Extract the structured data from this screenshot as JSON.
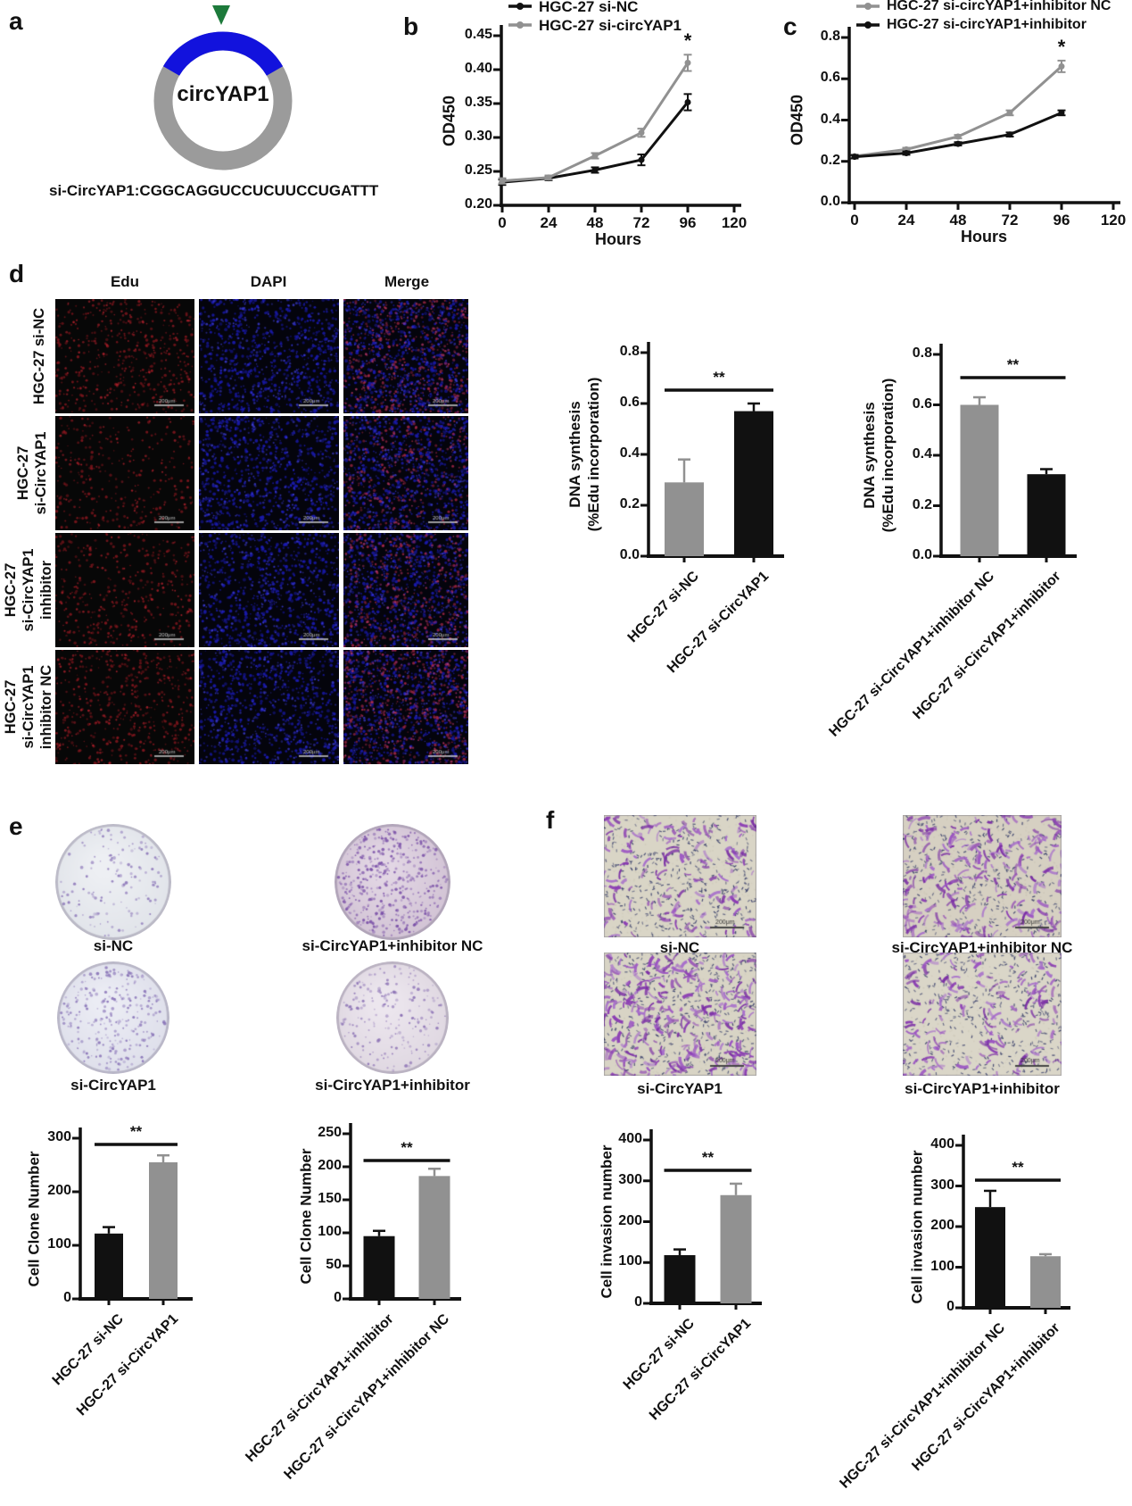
{
  "figure": {
    "scale_bar": "200μm",
    "accent_colors": {
      "gray": "#919191",
      "black": "#111111",
      "blue_arc": "#1212dd",
      "green_arrow": "#1d7a3b",
      "ring_gray": "#9b9b9b"
    },
    "panels": {
      "a": {
        "label": "a",
        "gene": "circYAP1",
        "sequence": "si-CircYAP1:CGGCAGGUCCUCUUCCUGATTT"
      },
      "b": {
        "label": "b"
      },
      "c": {
        "label": "c"
      },
      "d": {
        "label": "d",
        "columns": [
          "Edu",
          "DAPI",
          "Merge"
        ],
        "rows": [
          {
            "lines": [
              "HGC-27 si-NC"
            ],
            "edu_dots": 330
          },
          {
            "lines": [
              "HGC-27",
              "si-CircYAP1"
            ],
            "edu_dots": 215
          },
          {
            "lines": [
              "HGC-27",
              "si-CircYAP1",
              "inhibitor"
            ],
            "edu_dots": 265
          },
          {
            "lines": [
              "HGC-27",
              "si-CircYAP1",
              "inhibitor NC"
            ],
            "edu_dots": 345
          }
        ],
        "dapi_dots": 620
      },
      "e": {
        "label": "e",
        "wells": [
          {
            "label": "si-NC",
            "bg": "#dfe2e8",
            "bg_light": "#edeff3",
            "dot_color": "#8a74b8",
            "dots": 135
          },
          {
            "label": "si-CircYAP1+inhibitor NC",
            "bg": "#cfc0d2",
            "bg_light": "#e2d6e4",
            "dot_color": "#7a50a8",
            "dots": 430
          },
          {
            "label": "si-CircYAP1",
            "bg": "#dcdde9",
            "bg_light": "#ebecf4",
            "dot_color": "#8670b6",
            "dots": 270
          },
          {
            "label": "si-CircYAP1+inhibitor",
            "bg": "#ddd5df",
            "bg_light": "#ece6ee",
            "dot_color": "#8a70b4",
            "dots": 200
          }
        ]
      },
      "f": {
        "label": "f",
        "images": [
          {
            "label": "si-NC",
            "bg": "#d9d5c6",
            "cells": 135,
            "specks": 420
          },
          {
            "label": "si-CircYAP1+inhibitor NC",
            "bg": "#d6d0c2",
            "cells": 215,
            "specks": 380
          },
          {
            "label": "si-CircYAP1",
            "bg": "#d8d4c5",
            "cells": 270,
            "specks": 470
          },
          {
            "label": "si-CircYAP1+inhibitor",
            "bg": "#dad6c8",
            "cells": 150,
            "specks": 430
          }
        ]
      }
    }
  },
  "chart_data": [
    {
      "id": "b",
      "type": "line",
      "title": "",
      "xlabel": "Hours",
      "ylabel": "OD450",
      "x": [
        0,
        24,
        48,
        72,
        96
      ],
      "xticks": [
        "0",
        "24",
        "48",
        "72",
        "96",
        "120"
      ],
      "ylim": [
        0.2,
        0.45
      ],
      "yticks": [
        "0.20",
        "0.25",
        "0.30",
        "0.35",
        "0.40",
        "0.45"
      ],
      "legend_position": "top",
      "grid": false,
      "star": "*",
      "star_series": 1,
      "series": [
        {
          "name": "HGC-27 si-NC",
          "color": "#111111",
          "values": [
            0.234,
            0.24,
            0.252,
            0.267,
            0.352
          ],
          "err": [
            0.004,
            0.003,
            0.004,
            0.008,
            0.012
          ]
        },
        {
          "name": "HGC-27 si-circYAP1",
          "color": "#919191",
          "values": [
            0.236,
            0.241,
            0.273,
            0.307,
            0.41
          ],
          "err": [
            0.004,
            0.003,
            0.004,
            0.006,
            0.012
          ]
        }
      ]
    },
    {
      "id": "c",
      "type": "line",
      "title": "",
      "xlabel": "Hours",
      "ylabel": "OD450",
      "x": [
        0,
        24,
        48,
        72,
        96
      ],
      "xticks": [
        "0",
        "24",
        "48",
        "72",
        "96",
        "120"
      ],
      "ylim": [
        0.0,
        0.8
      ],
      "yticks": [
        "0.0",
        "0.2",
        "0.4",
        "0.6",
        "0.8"
      ],
      "legend_position": "top",
      "grid": false,
      "star": "*",
      "star_series": 0,
      "series": [
        {
          "name": "HGC-27 si-circYAP1+inhibitor NC",
          "color": "#919191",
          "values": [
            0.225,
            0.258,
            0.32,
            0.435,
            0.66
          ],
          "err": [
            0.008,
            0.008,
            0.008,
            0.012,
            0.028
          ]
        },
        {
          "name": "HGC-27 si-circYAP1+inhibitor",
          "color": "#111111",
          "values": [
            0.222,
            0.24,
            0.285,
            0.33,
            0.435
          ],
          "err": [
            0.008,
            0.008,
            0.008,
            0.01,
            0.012
          ]
        }
      ]
    },
    {
      "id": "d1",
      "type": "bar",
      "title": "",
      "xlabel": "",
      "ylabel": [
        "DNA synthesis",
        "(%Edu incorporation)"
      ],
      "ylim": [
        0,
        0.8
      ],
      "yticks": [
        "0.0",
        "0.2",
        "0.4",
        "0.6",
        "0.8"
      ],
      "sig": "**",
      "categories": [
        "HGC-27 si-NC",
        "HGC-27 si-CircYAP1"
      ],
      "values": [
        0.29,
        0.57
      ],
      "errors": [
        0.09,
        0.03
      ],
      "colors": [
        "#919191",
        "#111111"
      ]
    },
    {
      "id": "d2",
      "type": "bar",
      "title": "",
      "xlabel": "",
      "ylabel": [
        "DNA synthesis",
        "(%Edu incorporation)"
      ],
      "ylim": [
        0,
        0.8
      ],
      "yticks": [
        "0.0",
        "0.2",
        "0.4",
        "0.6",
        "0.8"
      ],
      "sig": "**",
      "categories": [
        "HGC-27 si-CircYAP1+inhibitor NC",
        "HGC-27 si-CircYAP1+inhibitor"
      ],
      "values": [
        0.6,
        0.325
      ],
      "errors": [
        0.03,
        0.02
      ],
      "colors": [
        "#919191",
        "#111111"
      ]
    },
    {
      "id": "e1",
      "type": "bar",
      "title": "",
      "xlabel": "",
      "ylabel": [
        "Cell Clone Number"
      ],
      "ylim": [
        0,
        300
      ],
      "yticks": [
        "0",
        "100",
        "200",
        "300"
      ],
      "sig": "**",
      "categories": [
        "HGC-27 si-NC",
        "HGC-27 si-CircYAP1"
      ],
      "values": [
        122,
        255
      ],
      "errors": [
        12,
        13
      ],
      "colors": [
        "#111111",
        "#919191"
      ]
    },
    {
      "id": "e2",
      "type": "bar",
      "title": "",
      "xlabel": "",
      "ylabel": [
        "Cell Clone Number"
      ],
      "ylim": [
        0,
        250
      ],
      "yticks": [
        "0",
        "50",
        "100",
        "150",
        "200",
        "250"
      ],
      "sig": "**",
      "categories": [
        "HGC-27 si-CircYAP1+inhibitor",
        "HGC-27 si-CircYAP1+inhibitor NC"
      ],
      "values": [
        95,
        186
      ],
      "errors": [
        8,
        11
      ],
      "colors": [
        "#111111",
        "#919191"
      ]
    },
    {
      "id": "f1",
      "type": "bar",
      "title": "",
      "xlabel": "",
      "ylabel": [
        "Cell invasion number"
      ],
      "ylim": [
        0,
        400
      ],
      "yticks": [
        "0",
        "100",
        "200",
        "300",
        "400"
      ],
      "sig": "**",
      "categories": [
        "HGC-27 si-NC",
        "HGC-27 si-CircYAP1"
      ],
      "values": [
        118,
        265
      ],
      "errors": [
        14,
        28
      ],
      "colors": [
        "#111111",
        "#919191"
      ]
    },
    {
      "id": "f2",
      "type": "bar",
      "title": "",
      "xlabel": "",
      "ylabel": [
        "Cell invasion number"
      ],
      "ylim": [
        0,
        400
      ],
      "yticks": [
        "0",
        "100",
        "200",
        "300",
        "400"
      ],
      "sig": "**",
      "categories": [
        "HGC-27 si-CircYAP1+inhibitor NC",
        "HGC-27 si-CircYAP1+inhibitor"
      ],
      "values": [
        248,
        127
      ],
      "errors": [
        40,
        5
      ],
      "colors": [
        "#111111",
        "#919191"
      ]
    }
  ]
}
